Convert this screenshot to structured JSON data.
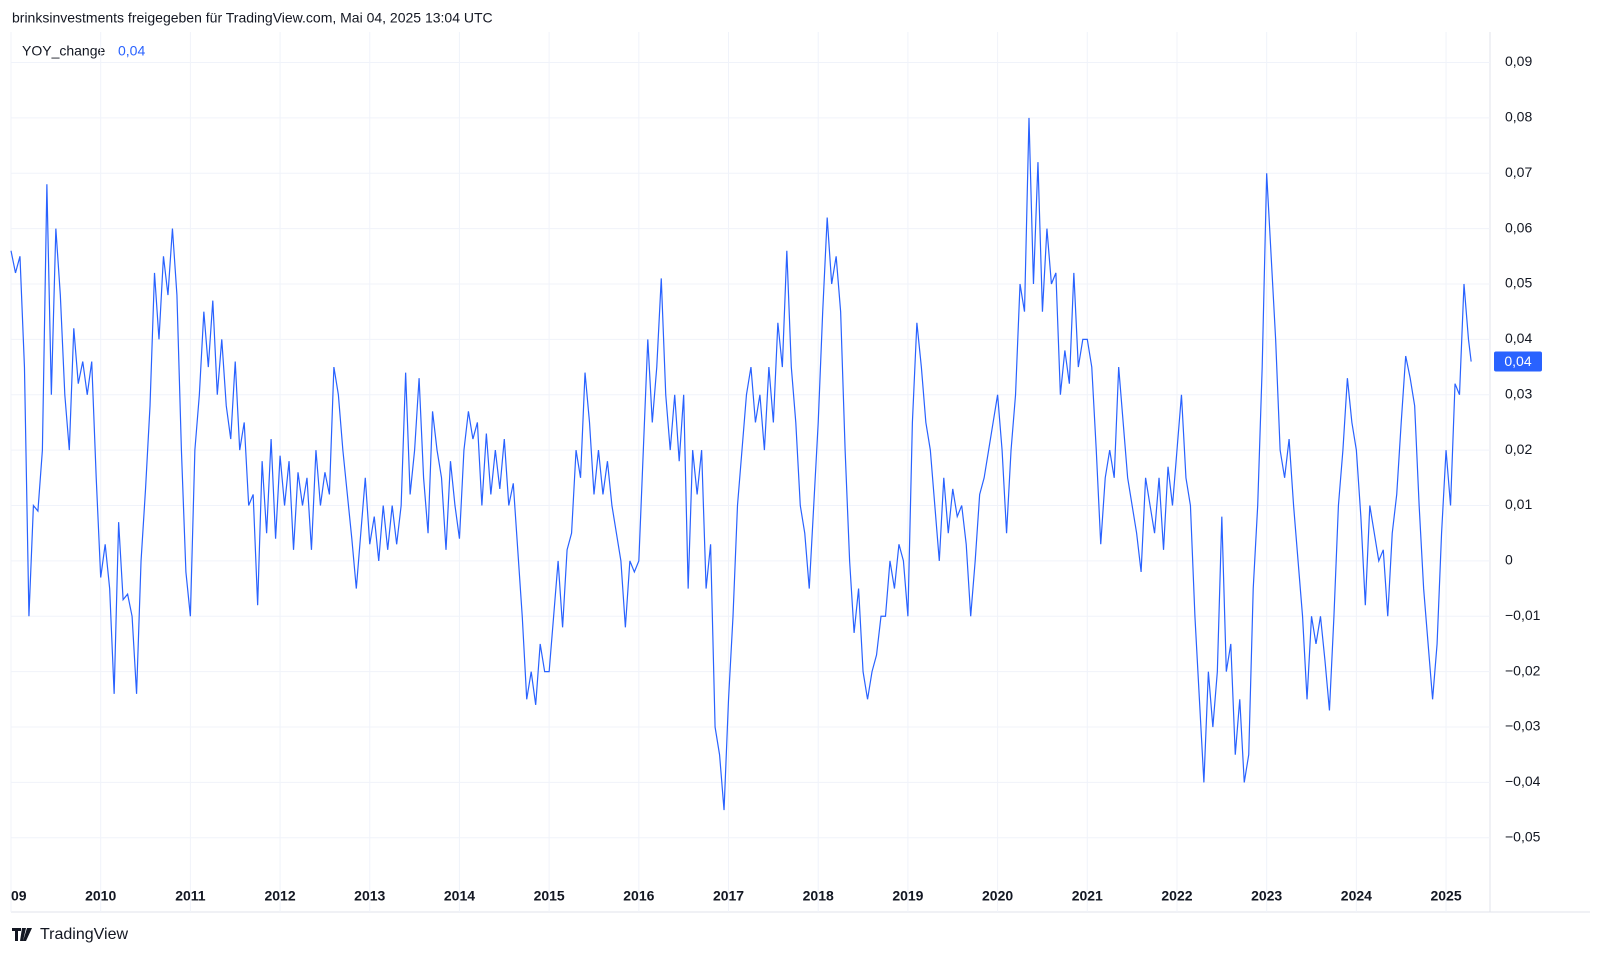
{
  "chart_data": {
    "type": "line",
    "title": "brinksinvestments freigegeben für TradingView.com, Mai 04, 2025 13:04 UTC",
    "brand": "TradingView",
    "legend_value": "0,04",
    "last_value_label": "0,04",
    "grid": true,
    "xlim": [
      2009,
      2025.49
    ],
    "ylim": [
      -0.0634,
      0.0955
    ],
    "xticks": [
      {
        "value": 2009,
        "label": "09"
      },
      2010,
      2011,
      2012,
      2013,
      2014,
      2015,
      2016,
      2017,
      2018,
      2019,
      2020,
      2021,
      2022,
      2023,
      2024,
      2025
    ],
    "yticks": [
      {
        "value": -0.05,
        "label": "−0,05"
      },
      {
        "value": -0.04,
        "label": "−0,04"
      },
      {
        "value": -0.03,
        "label": "−0,03"
      },
      {
        "value": -0.02,
        "label": "−0,02"
      },
      {
        "value": -0.01,
        "label": "−0,01"
      },
      0,
      {
        "value": 0.01,
        "label": "0,01"
      },
      {
        "value": 0.02,
        "label": "0,02"
      },
      {
        "value": 0.03,
        "label": "0,03"
      },
      {
        "value": 0.04,
        "label": "0,04"
      },
      {
        "value": 0.05,
        "label": "0,05"
      },
      {
        "value": 0.06,
        "label": "0,06"
      },
      {
        "value": 0.07,
        "label": "0,07"
      },
      {
        "value": 0.08,
        "label": "0,08"
      },
      {
        "value": 0.09,
        "label": "0,09"
      }
    ],
    "x": [
      2009,
      2009.05,
      2009.1,
      2009.15,
      2009.2,
      2009.25,
      2009.3,
      2009.35,
      2009.4,
      2009.45,
      2009.5,
      2009.55,
      2009.6,
      2009.65,
      2009.7,
      2009.75,
      2009.8,
      2009.85,
      2009.9,
      2009.95,
      2010,
      2010.05,
      2010.1,
      2010.15,
      2010.2,
      2010.25,
      2010.3,
      2010.35,
      2010.4,
      2010.45,
      2010.5,
      2010.55,
      2010.6,
      2010.65,
      2010.7,
      2010.75,
      2010.8,
      2010.85,
      2010.9,
      2010.95,
      2011,
      2011.05,
      2011.1,
      2011.15,
      2011.2,
      2011.25,
      2011.3,
      2011.35,
      2011.4,
      2011.45,
      2011.5,
      2011.55,
      2011.6,
      2011.65,
      2011.7,
      2011.75,
      2011.8,
      2011.85,
      2011.9,
      2011.95,
      2012,
      2012.05,
      2012.1,
      2012.15,
      2012.2,
      2012.25,
      2012.3,
      2012.35,
      2012.4,
      2012.45,
      2012.5,
      2012.55,
      2012.6,
      2012.65,
      2012.7,
      2012.75,
      2012.8,
      2012.85,
      2012.9,
      2012.95,
      2013,
      2013.05,
      2013.1,
      2013.15,
      2013.2,
      2013.25,
      2013.3,
      2013.35,
      2013.4,
      2013.45,
      2013.5,
      2013.55,
      2013.6,
      2013.65,
      2013.7,
      2013.75,
      2013.8,
      2013.85,
      2013.9,
      2013.95,
      2014,
      2014.05,
      2014.1,
      2014.15,
      2014.2,
      2014.25,
      2014.3,
      2014.35,
      2014.4,
      2014.45,
      2014.5,
      2014.55,
      2014.6,
      2014.65,
      2014.7,
      2014.75,
      2014.8,
      2014.85,
      2014.9,
      2014.95,
      2015,
      2015.05,
      2015.1,
      2015.15,
      2015.2,
      2015.25,
      2015.3,
      2015.35,
      2015.4,
      2015.45,
      2015.5,
      2015.55,
      2015.6,
      2015.65,
      2015.7,
      2015.75,
      2015.8,
      2015.85,
      2015.9,
      2015.95,
      2016,
      2016.05,
      2016.1,
      2016.15,
      2016.2,
      2016.25,
      2016.3,
      2016.35,
      2016.4,
      2016.45,
      2016.5,
      2016.55,
      2016.6,
      2016.65,
      2016.7,
      2016.75,
      2016.8,
      2016.85,
      2016.9,
      2016.95,
      2017,
      2017.05,
      2017.1,
      2017.15,
      2017.2,
      2017.25,
      2017.3,
      2017.35,
      2017.4,
      2017.45,
      2017.5,
      2017.55,
      2017.6,
      2017.65,
      2017.7,
      2017.75,
      2017.8,
      2017.85,
      2017.9,
      2017.95,
      2018,
      2018.05,
      2018.1,
      2018.15,
      2018.2,
      2018.25,
      2018.3,
      2018.35,
      2018.4,
      2018.45,
      2018.5,
      2018.55,
      2018.6,
      2018.65,
      2018.7,
      2018.75,
      2018.8,
      2018.85,
      2018.9,
      2018.95,
      2019,
      2019.05,
      2019.1,
      2019.15,
      2019.2,
      2019.25,
      2019.3,
      2019.35,
      2019.4,
      2019.45,
      2019.5,
      2019.55,
      2019.6,
      2019.65,
      2019.7,
      2019.75,
      2019.8,
      2019.85,
      2019.9,
      2019.95,
      2020,
      2020.05,
      2020.1,
      2020.15,
      2020.2,
      2020.25,
      2020.3,
      2020.35,
      2020.4,
      2020.45,
      2020.5,
      2020.55,
      2020.6,
      2020.65,
      2020.7,
      2020.75,
      2020.8,
      2020.85,
      2020.9,
      2020.95,
      2021,
      2021.05,
      2021.1,
      2021.15,
      2021.2,
      2021.25,
      2021.3,
      2021.35,
      2021.4,
      2021.45,
      2021.5,
      2021.55,
      2021.6,
      2021.65,
      2021.7,
      2021.75,
      2021.8,
      2021.85,
      2021.9,
      2021.95,
      2022,
      2022.05,
      2022.1,
      2022.15,
      2022.2,
      2022.25,
      2022.3,
      2022.35,
      2022.4,
      2022.45,
      2022.5,
      2022.55,
      2022.6,
      2022.65,
      2022.7,
      2022.75,
      2022.8,
      2022.85,
      2022.9,
      2022.95,
      2023,
      2023.05,
      2023.1,
      2023.15,
      2023.2,
      2023.25,
      2023.3,
      2023.35,
      2023.4,
      2023.45,
      2023.5,
      2023.55,
      2023.6,
      2023.65,
      2023.7,
      2023.75,
      2023.8,
      2023.85,
      2023.9,
      2023.95,
      2024,
      2024.05,
      2024.1,
      2024.15,
      2024.2,
      2024.25,
      2024.3,
      2024.35,
      2024.4,
      2024.45,
      2024.5,
      2024.55,
      2024.6,
      2024.65,
      2024.7,
      2024.75,
      2024.8,
      2024.85,
      2024.9,
      2024.95,
      2025,
      2025.05,
      2025.1,
      2025.15,
      2025.2,
      2025.25,
      2025.28
    ],
    "series": [
      {
        "name": "YOY_change",
        "color": "#2962ff",
        "values": [
          0.056,
          0.052,
          0.055,
          0.035,
          -0.01,
          0.01,
          0.009,
          0.02,
          0.068,
          0.03,
          0.06,
          0.048,
          0.03,
          0.02,
          0.042,
          0.032,
          0.036,
          0.03,
          0.036,
          0.015,
          -0.003,
          0.003,
          -0.005,
          -0.024,
          0.007,
          -0.007,
          -0.006,
          -0.01,
          -0.024,
          0.0,
          0.013,
          0.028,
          0.052,
          0.04,
          0.055,
          0.048,
          0.06,
          0.048,
          0.02,
          -0.002,
          -0.01,
          0.02,
          0.03,
          0.045,
          0.035,
          0.047,
          0.03,
          0.04,
          0.028,
          0.022,
          0.036,
          0.02,
          0.025,
          0.01,
          0.012,
          -0.008,
          0.018,
          0.005,
          0.022,
          0.004,
          0.019,
          0.01,
          0.018,
          0.002,
          0.016,
          0.01,
          0.015,
          0.002,
          0.02,
          0.01,
          0.016,
          0.012,
          0.035,
          0.03,
          0.02,
          0.012,
          0.004,
          -0.005,
          0.005,
          0.015,
          0.003,
          0.008,
          0.0,
          0.01,
          0.002,
          0.01,
          0.003,
          0.01,
          0.034,
          0.012,
          0.02,
          0.033,
          0.015,
          0.005,
          0.027,
          0.02,
          0.015,
          0.002,
          0.018,
          0.01,
          0.004,
          0.02,
          0.027,
          0.022,
          0.025,
          0.01,
          0.023,
          0.012,
          0.02,
          0.013,
          0.022,
          0.01,
          0.014,
          0.002,
          -0.01,
          -0.025,
          -0.02,
          -0.026,
          -0.015,
          -0.02,
          -0.02,
          -0.01,
          0.0,
          -0.012,
          0.002,
          0.005,
          0.02,
          0.015,
          0.034,
          0.025,
          0.012,
          0.02,
          0.012,
          0.018,
          0.01,
          0.005,
          0.0,
          -0.012,
          0.0,
          -0.002,
          0.0,
          0.02,
          0.04,
          0.025,
          0.035,
          0.051,
          0.03,
          0.02,
          0.03,
          0.018,
          0.03,
          -0.005,
          0.02,
          0.012,
          0.02,
          -0.005,
          0.003,
          -0.03,
          -0.035,
          -0.045,
          -0.025,
          -0.01,
          0.01,
          0.02,
          0.03,
          0.035,
          0.025,
          0.03,
          0.02,
          0.035,
          0.025,
          0.043,
          0.035,
          0.056,
          0.035,
          0.025,
          0.01,
          0.005,
          -0.005,
          0.01,
          0.025,
          0.045,
          0.062,
          0.05,
          0.055,
          0.045,
          0.02,
          0.0,
          -0.013,
          -0.005,
          -0.02,
          -0.025,
          -0.02,
          -0.017,
          -0.01,
          -0.01,
          0.0,
          -0.005,
          0.003,
          0.0,
          -0.01,
          0.025,
          0.043,
          0.035,
          0.025,
          0.02,
          0.01,
          0.0,
          0.015,
          0.005,
          0.013,
          0.008,
          0.01,
          0.003,
          -0.01,
          0.0,
          0.012,
          0.015,
          0.02,
          0.025,
          0.03,
          0.02,
          0.005,
          0.02,
          0.03,
          0.05,
          0.045,
          0.08,
          0.05,
          0.072,
          0.045,
          0.06,
          0.05,
          0.052,
          0.03,
          0.038,
          0.032,
          0.052,
          0.035,
          0.04,
          0.04,
          0.035,
          0.02,
          0.003,
          0.015,
          0.02,
          0.015,
          0.035,
          0.025,
          0.015,
          0.01,
          0.005,
          -0.002,
          0.015,
          0.01,
          0.005,
          0.015,
          0.002,
          0.017,
          0.01,
          0.02,
          0.03,
          0.015,
          0.01,
          -0.01,
          -0.025,
          -0.04,
          -0.02,
          -0.03,
          -0.02,
          0.008,
          -0.02,
          -0.015,
          -0.035,
          -0.025,
          -0.04,
          -0.035,
          -0.005,
          0.01,
          0.035,
          0.07,
          0.055,
          0.04,
          0.02,
          0.015,
          0.022,
          0.01,
          0.0,
          -0.01,
          -0.025,
          -0.01,
          -0.015,
          -0.01,
          -0.018,
          -0.027,
          -0.01,
          0.01,
          0.02,
          0.033,
          0.025,
          0.02,
          0.008,
          -0.008,
          0.01,
          0.005,
          0.0,
          0.002,
          -0.01,
          0.005,
          0.012,
          0.025,
          0.037,
          0.033,
          0.028,
          0.01,
          -0.005,
          -0.015,
          -0.025,
          -0.015,
          0.005,
          0.02,
          0.01,
          0.032,
          0.03,
          0.05,
          0.04,
          0.036
        ]
      }
    ]
  }
}
